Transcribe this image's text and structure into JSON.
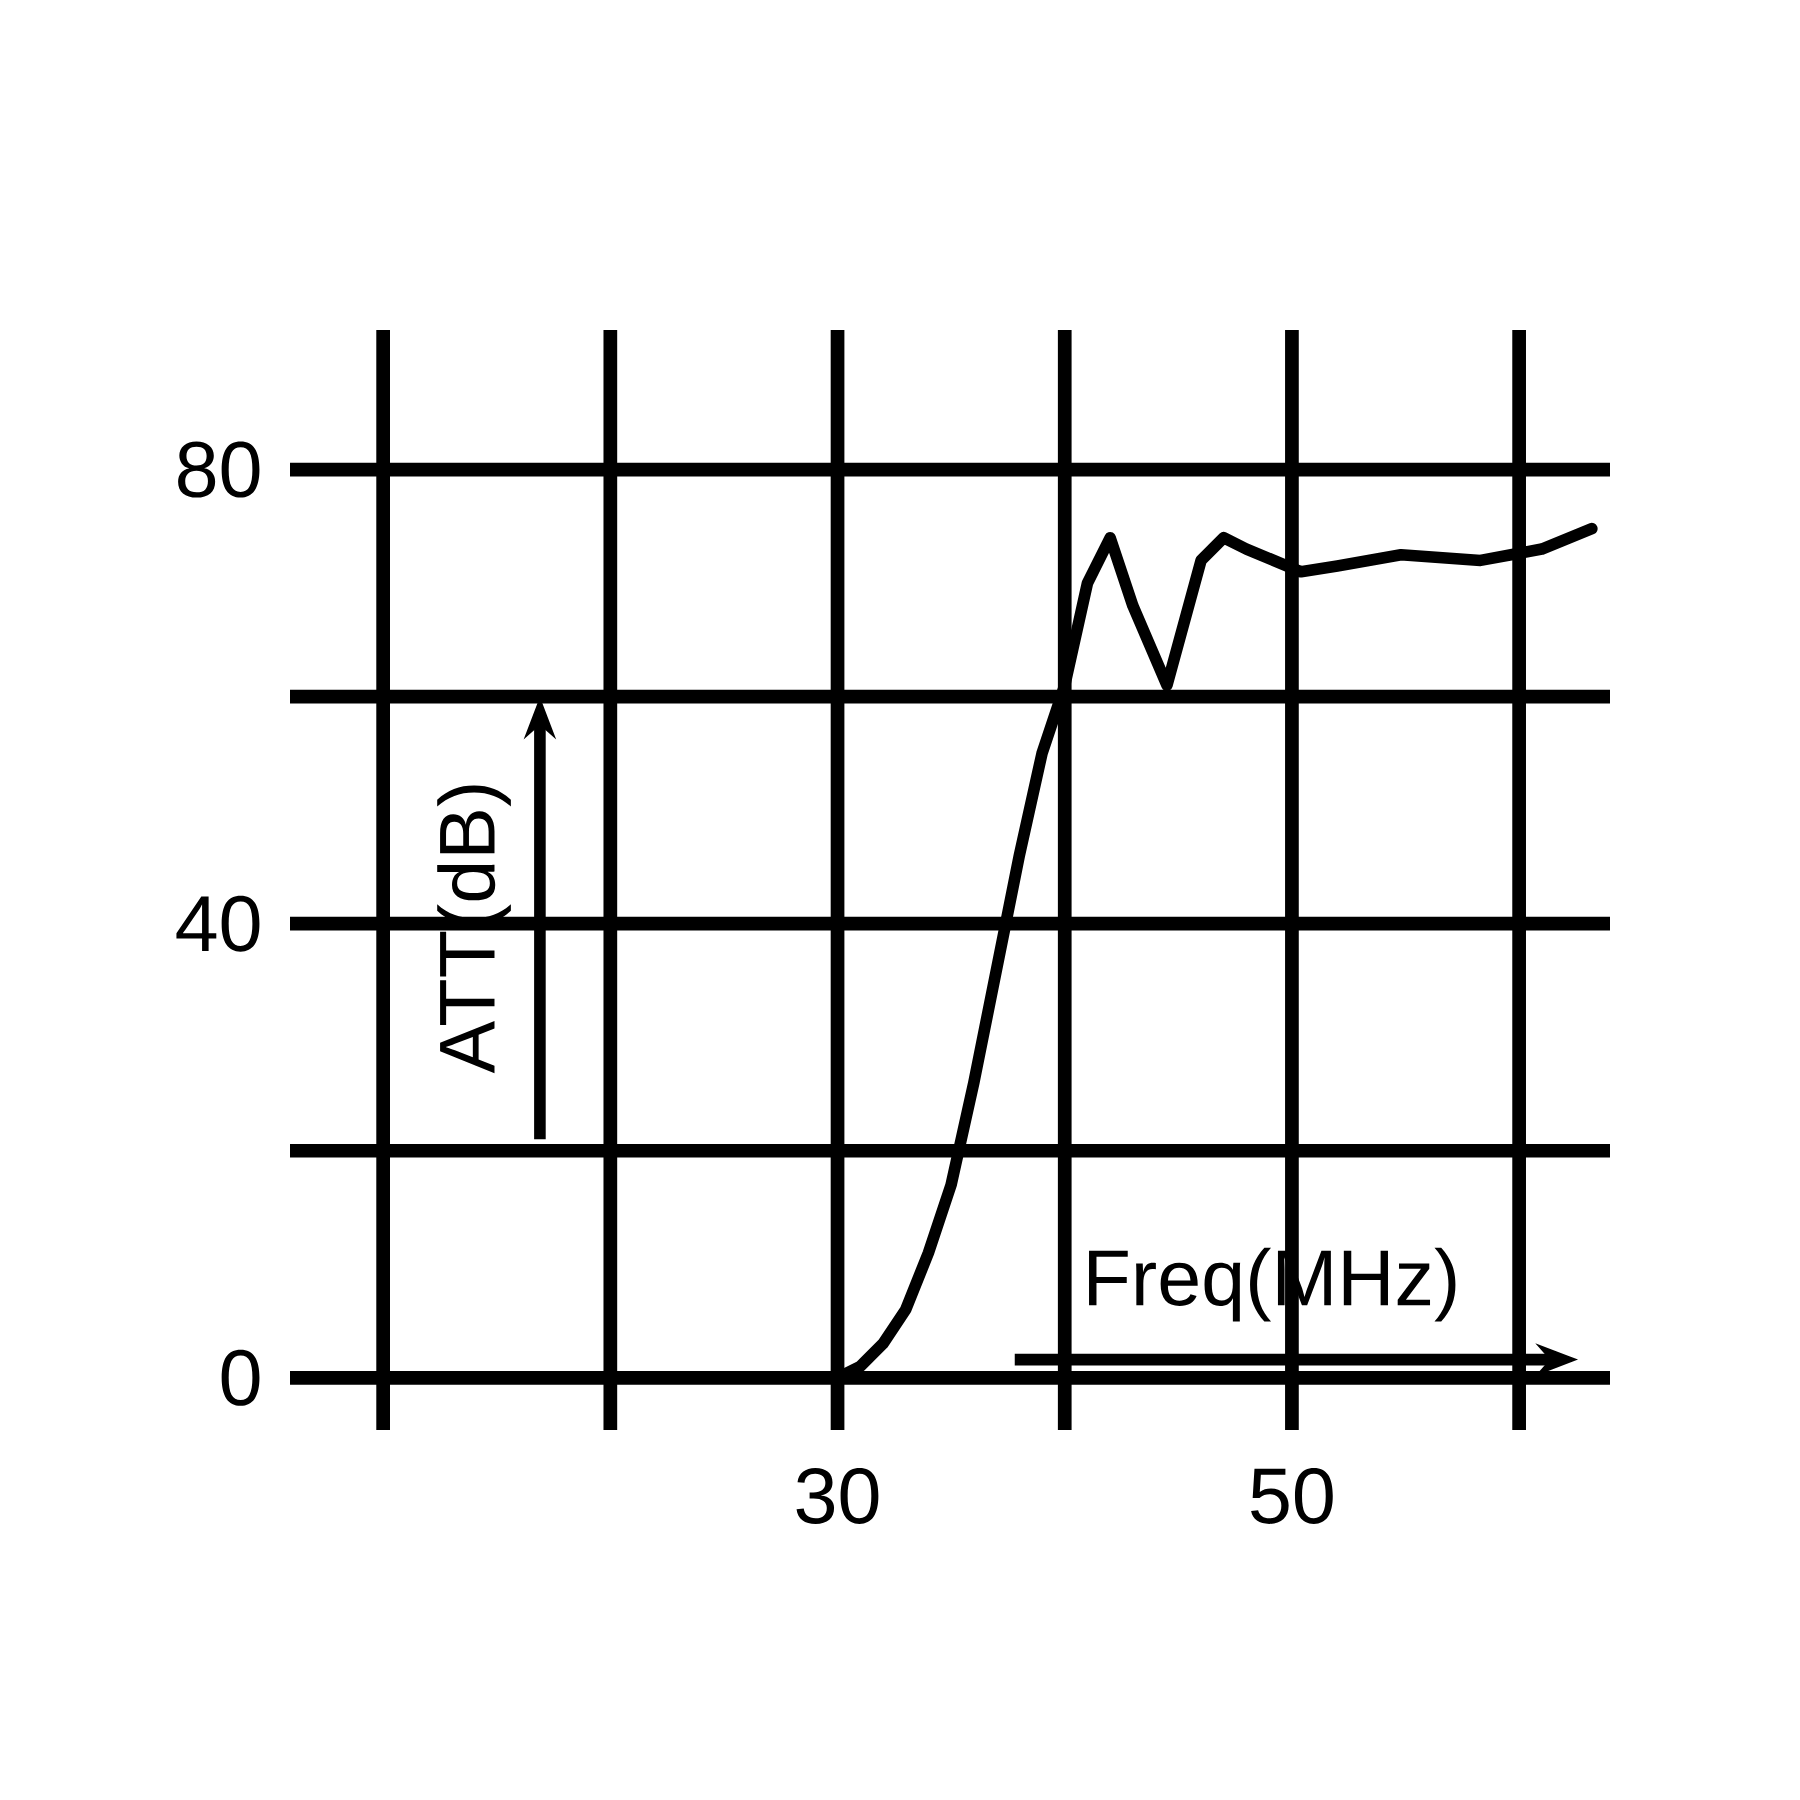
{
  "chart_data": {
    "type": "line",
    "xlabel": "Freq(MHz)",
    "ylabel": "ATT(dB)",
    "x": [
      10,
      15,
      20,
      25,
      30,
      31,
      32,
      33,
      34,
      35,
      36,
      37,
      38,
      39,
      40,
      41,
      42,
      43,
      44.5,
      46,
      47,
      48,
      50.4,
      52,
      54.8,
      58.3,
      61,
      63.2
    ],
    "values": [
      0,
      0,
      0,
      0,
      0,
      1,
      3,
      6,
      11,
      17,
      26,
      36,
      46,
      55,
      61,
      70,
      74,
      68,
      61,
      72,
      74,
      73,
      71,
      71.5,
      72.5,
      72,
      73,
      74.8
    ],
    "color": "#000000",
    "marker": "none",
    "line_style": "solid",
    "xlim": [
      5.9,
      64
    ],
    "ylim": [
      -4.6,
      92.3
    ],
    "xticks": [
      {
        "value": 10,
        "label": null
      },
      {
        "value": 20,
        "label": null
      },
      30,
      {
        "value": 40,
        "label": null
      },
      50,
      {
        "value": 60,
        "label": null
      }
    ],
    "yticks": [
      0,
      {
        "value": 20,
        "label": null
      },
      40,
      {
        "value": 60,
        "label": null
      },
      80
    ],
    "grid": true
  }
}
